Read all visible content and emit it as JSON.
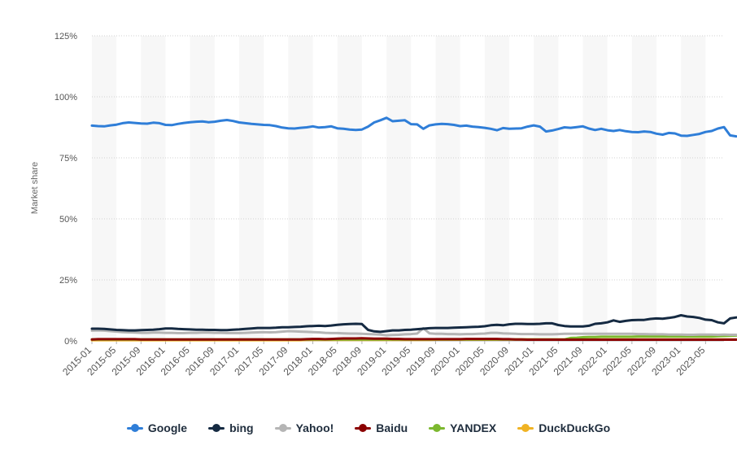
{
  "chart_data": {
    "type": "line",
    "title": "",
    "xlabel": "",
    "ylabel": "Market share",
    "ylim": [
      0,
      125
    ],
    "y_ticks": [
      "0%",
      "25%",
      "50%",
      "75%",
      "100%",
      "125%"
    ],
    "y_tick_values": [
      0,
      25,
      50,
      75,
      100,
      125
    ],
    "x_ticks": [
      "2015-01",
      "2015-05",
      "2015-09",
      "2016-01",
      "2016-05",
      "2016-09",
      "2017-01",
      "2017-05",
      "2017-09",
      "2018-01",
      "2018-05",
      "2018-09",
      "2019-01",
      "2019-05",
      "2019-09",
      "2020-01",
      "2020-05",
      "2020-09",
      "2021-01",
      "2021-05",
      "2021-09",
      "2022-01",
      "2022-05",
      "2022-09",
      "2023-01",
      "2023-05"
    ],
    "x_start": "2015-01",
    "x_end": "2023-08",
    "grid": true,
    "legend_position": "bottom",
    "series": [
      {
        "name": "Google",
        "color": "#2f7ed8",
        "values": [
          88.2,
          88.0,
          87.9,
          88.3,
          88.6,
          89.2,
          89.5,
          89.3,
          89.1,
          89.0,
          89.4,
          89.2,
          88.5,
          88.4,
          88.9,
          89.3,
          89.6,
          89.8,
          89.9,
          89.6,
          89.8,
          90.2,
          90.5,
          90.1,
          89.5,
          89.2,
          88.9,
          88.7,
          88.5,
          88.4,
          88.0,
          87.4,
          87.1,
          87.0,
          87.3,
          87.5,
          87.9,
          87.4,
          87.6,
          87.9,
          87.1,
          86.9,
          86.6,
          86.4,
          86.6,
          87.8,
          89.5,
          90.4,
          91.4,
          90.0,
          90.2,
          90.4,
          88.8,
          88.7,
          86.9,
          88.3,
          88.7,
          88.9,
          88.8,
          88.5,
          88.0,
          88.2,
          87.8,
          87.6,
          87.3,
          86.9,
          86.3,
          87.2,
          86.9,
          87.0,
          87.1,
          87.8,
          88.3,
          87.8,
          85.8,
          86.2,
          86.8,
          87.5,
          87.3,
          87.6,
          87.9,
          87.0,
          86.4,
          86.9,
          86.3,
          86.0,
          86.4,
          85.9,
          85.6,
          85.5,
          85.8,
          85.6,
          84.9,
          84.5,
          85.2,
          85.0,
          84.1,
          84.0,
          84.4,
          84.8,
          85.6,
          86.0,
          87.0,
          87.6,
          84.2,
          83.8
        ]
      },
      {
        "name": "bing",
        "color": "#152a42",
        "values": [
          5.0,
          5.0,
          4.9,
          4.7,
          4.5,
          4.4,
          4.3,
          4.3,
          4.4,
          4.5,
          4.6,
          4.8,
          5.1,
          5.1,
          4.9,
          4.8,
          4.7,
          4.6,
          4.6,
          4.5,
          4.5,
          4.4,
          4.4,
          4.6,
          4.7,
          4.9,
          5.1,
          5.3,
          5.3,
          5.3,
          5.4,
          5.6,
          5.6,
          5.7,
          5.8,
          6.0,
          6.1,
          6.2,
          6.1,
          6.3,
          6.6,
          6.8,
          6.9,
          7.0,
          6.9,
          4.5,
          3.9,
          3.7,
          4.0,
          4.3,
          4.3,
          4.5,
          4.6,
          4.8,
          5.0,
          5.2,
          5.3,
          5.3,
          5.3,
          5.4,
          5.5,
          5.6,
          5.7,
          5.8,
          6.0,
          6.4,
          6.6,
          6.4,
          6.8,
          7.0,
          7.0,
          6.9,
          6.9,
          7.0,
          7.2,
          7.2,
          6.5,
          6.1,
          5.9,
          5.9,
          5.9,
          6.2,
          7.0,
          7.2,
          7.6,
          8.4,
          7.8,
          8.2,
          8.5,
          8.6,
          8.6,
          9.0,
          9.2,
          9.1,
          9.4,
          9.8,
          10.5,
          10.0,
          9.8,
          9.4,
          8.7,
          8.5,
          7.6,
          7.2,
          9.2,
          9.6
        ]
      },
      {
        "name": "Yahoo!",
        "color": "#b5b5b5",
        "values": [
          4.2,
          4.3,
          4.2,
          4.0,
          3.8,
          3.6,
          3.5,
          3.4,
          3.3,
          3.3,
          3.4,
          3.4,
          3.3,
          3.3,
          3.2,
          3.2,
          3.3,
          3.3,
          3.4,
          3.4,
          3.3,
          3.3,
          3.2,
          3.2,
          3.2,
          3.3,
          3.4,
          3.5,
          3.6,
          3.5,
          3.6,
          3.8,
          4.0,
          3.9,
          3.8,
          3.7,
          3.6,
          3.5,
          3.3,
          3.2,
          3.2,
          3.1,
          3.0,
          3.0,
          2.9,
          2.8,
          2.7,
          2.6,
          2.3,
          2.4,
          2.5,
          2.7,
          2.8,
          3.0,
          5.2,
          3.1,
          2.9,
          2.9,
          2.8,
          2.8,
          2.7,
          2.8,
          2.8,
          2.9,
          3.0,
          3.3,
          3.3,
          3.1,
          3.0,
          2.9,
          2.8,
          2.8,
          2.8,
          2.7,
          2.7,
          2.7,
          2.8,
          2.9,
          2.9,
          2.9,
          2.9,
          2.9,
          2.9,
          2.9,
          2.9,
          2.9,
          2.9,
          2.9,
          2.9,
          2.8,
          2.8,
          2.7,
          2.7,
          2.7,
          2.6,
          2.6,
          2.6,
          2.5,
          2.5,
          2.6,
          2.6,
          2.6,
          2.5,
          2.6,
          2.5,
          2.5
        ]
      },
      {
        "name": "Baidu",
        "color": "#8b0000",
        "values": [
          0.6,
          0.7,
          0.7,
          0.7,
          0.7,
          0.7,
          0.7,
          0.7,
          0.6,
          0.6,
          0.6,
          0.6,
          0.6,
          0.6,
          0.6,
          0.6,
          0.6,
          0.6,
          0.6,
          0.6,
          0.6,
          0.6,
          0.6,
          0.6,
          0.6,
          0.6,
          0.6,
          0.6,
          0.6,
          0.6,
          0.6,
          0.6,
          0.6,
          0.6,
          0.6,
          0.7,
          0.8,
          0.8,
          0.7,
          0.8,
          0.9,
          1.0,
          1.0,
          1.0,
          1.1,
          1.0,
          0.9,
          0.9,
          0.9,
          0.8,
          0.8,
          0.7,
          0.7,
          0.7,
          0.7,
          0.7,
          0.7,
          0.7,
          0.7,
          0.7,
          0.7,
          0.8,
          0.8,
          0.8,
          0.8,
          0.8,
          0.8,
          0.7,
          0.7,
          0.6,
          0.6,
          0.5,
          0.5,
          0.5,
          0.5,
          0.5,
          0.5,
          0.5,
          0.5,
          0.5,
          0.5,
          0.5,
          0.5,
          0.5,
          0.5,
          0.5,
          0.5,
          0.5,
          0.5,
          0.5,
          0.5,
          0.5,
          0.5,
          0.5,
          0.5,
          0.5,
          0.5,
          0.5,
          0.5,
          0.5,
          0.5,
          0.5,
          0.5,
          0.5,
          0.5,
          0.5
        ]
      },
      {
        "name": "YANDEX",
        "color": "#7cb82f",
        "values": [
          0.6,
          0.6,
          0.6,
          0.6,
          0.6,
          0.6,
          0.6,
          0.6,
          0.6,
          0.6,
          0.6,
          0.6,
          0.6,
          0.6,
          0.6,
          0.6,
          0.6,
          0.6,
          0.6,
          0.6,
          0.6,
          0.6,
          0.6,
          0.6,
          0.6,
          0.6,
          0.6,
          0.6,
          0.6,
          0.6,
          0.6,
          0.6,
          0.6,
          0.6,
          0.6,
          0.6,
          0.6,
          0.6,
          0.6,
          0.6,
          0.6,
          0.6,
          0.6,
          0.6,
          0.6,
          0.6,
          0.6,
          0.6,
          0.6,
          0.6,
          0.6,
          0.6,
          0.6,
          0.6,
          0.6,
          0.6,
          0.6,
          0.6,
          0.6,
          0.6,
          0.6,
          0.6,
          0.6,
          0.6,
          0.6,
          0.6,
          0.6,
          0.6,
          0.6,
          0.6,
          0.6,
          0.6,
          0.6,
          0.6,
          0.6,
          0.6,
          0.6,
          0.6,
          1.2,
          1.3,
          1.5,
          1.6,
          1.6,
          1.7,
          1.7,
          1.7,
          1.7,
          1.7,
          1.7,
          1.8,
          1.8,
          1.8,
          1.8,
          1.8,
          1.8,
          1.8,
          1.8,
          1.8,
          1.8,
          1.8,
          1.8,
          1.8,
          1.9,
          2.0,
          2.1,
          2.2
        ]
      },
      {
        "name": "DuckDuckGo",
        "color": "#f0b323",
        "values": [
          0.3,
          0.3,
          0.3,
          0.3,
          0.3,
          0.3,
          0.3,
          0.3,
          0.3,
          0.3,
          0.3,
          0.3,
          0.3,
          0.3,
          0.3,
          0.3,
          0.3,
          0.3,
          0.3,
          0.3,
          0.3,
          0.3,
          0.3,
          0.3,
          0.3,
          0.3,
          0.3,
          0.3,
          0.3,
          0.3,
          0.3,
          0.3,
          0.3,
          0.3,
          0.3,
          0.4,
          0.4,
          0.4,
          0.4,
          0.4,
          0.4,
          0.4,
          0.4,
          0.4,
          0.4,
          0.4,
          0.4,
          0.4,
          0.4,
          0.4,
          0.4,
          0.4,
          0.4,
          0.4,
          0.4,
          0.4,
          0.5,
          0.5,
          0.5,
          0.5,
          0.5,
          0.5,
          0.5,
          0.5,
          0.5,
          0.5,
          0.5,
          0.6,
          0.6,
          0.6,
          0.6,
          0.6,
          0.6,
          0.6,
          0.6,
          0.6,
          0.6,
          0.6,
          0.6,
          0.6,
          0.6,
          0.6,
          0.6,
          0.6,
          0.6,
          0.6,
          0.6,
          0.6,
          0.6,
          0.6,
          0.6,
          0.6,
          0.6,
          0.6,
          0.6,
          0.6,
          0.6,
          0.6,
          0.6,
          0.6,
          0.6,
          0.6,
          0.6,
          0.6,
          0.6,
          0.6
        ]
      }
    ]
  }
}
